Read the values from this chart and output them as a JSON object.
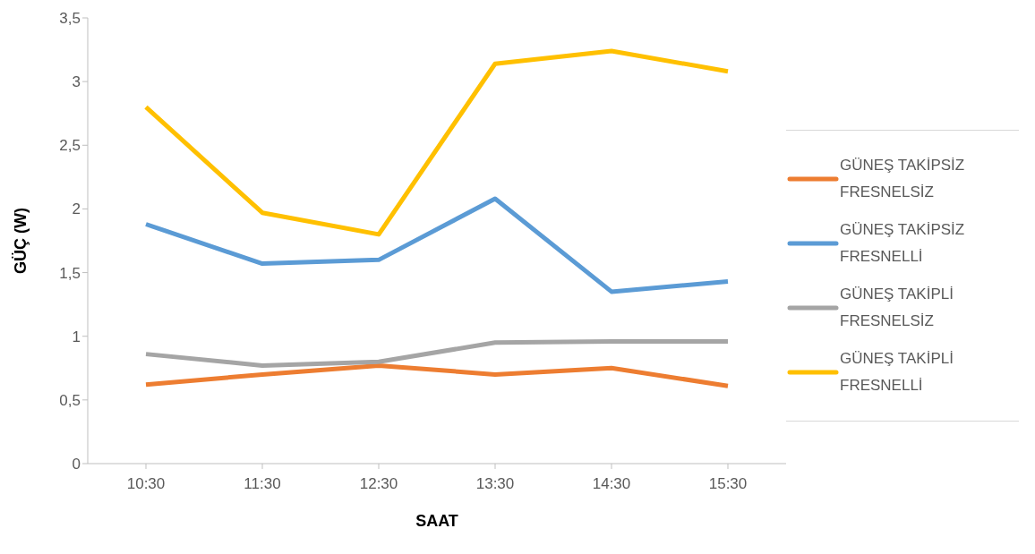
{
  "chart_data": {
    "type": "line",
    "xlabel": "SAAT",
    "ylabel": "GÜÇ (W)",
    "categories": [
      "10:30",
      "11:30",
      "12:30",
      "13:30",
      "14:30",
      "15:30"
    ],
    "series": [
      {
        "name": "GÜNEŞ TAKİPSİZ FRESNELSİZ",
        "color": "#ed7d31",
        "values": [
          0.62,
          0.7,
          0.77,
          0.7,
          0.75,
          0.61
        ]
      },
      {
        "name": "GÜNEŞ TAKİPSİZ FRESNELLİ",
        "color": "#5b9bd5",
        "values": [
          1.88,
          1.57,
          1.6,
          2.08,
          1.35,
          1.43
        ]
      },
      {
        "name": "GÜNEŞ TAKİPLİ FRESNELSİZ",
        "color": "#a5a5a5",
        "values": [
          0.86,
          0.77,
          0.8,
          0.95,
          0.96,
          0.96
        ]
      },
      {
        "name": "GÜNEŞ TAKİPLİ FRESNELLİ",
        "color": "#ffc000",
        "values": [
          2.8,
          1.97,
          1.8,
          3.14,
          3.24,
          3.08
        ]
      }
    ],
    "ylim": [
      0,
      3.5
    ],
    "yticks": [
      0,
      {
        "value": 0.5,
        "label": "0,5"
      },
      1,
      {
        "value": 1.5,
        "label": "1,5"
      },
      2,
      {
        "value": 2.5,
        "label": "2,5"
      },
      3,
      {
        "value": 3.5,
        "label": "3,5"
      }
    ],
    "grid": false,
    "legend": "right",
    "marker": "none",
    "line_style": "solid"
  }
}
